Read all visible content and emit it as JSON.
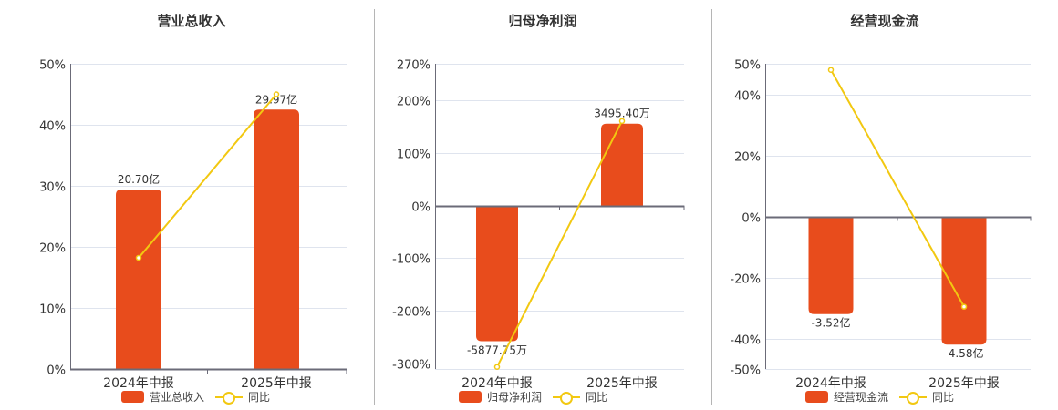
{
  "colors": {
    "bar": "#e84c1c",
    "line": "#f2c811",
    "grid": "#dfe4ee",
    "axis": "#6b6b78",
    "text": "#333333"
  },
  "panels": [
    {
      "title": "营业总收入",
      "bar_legend": "营业总收入",
      "line_legend": "同比"
    },
    {
      "title": "归母净利润",
      "bar_legend": "归母净利润",
      "line_legend": "同比"
    },
    {
      "title": "经营现金流",
      "bar_legend": "经营现金流",
      "line_legend": "同比"
    }
  ],
  "chart_data": [
    {
      "type": "bar",
      "title": "营业总收入",
      "categories": [
        "2024年中报",
        "2025年中报"
      ],
      "series": [
        {
          "name": "营业总收入",
          "type": "bar",
          "values": [
            29.4,
            42.5
          ],
          "labels": [
            "20.70亿",
            "29.97亿"
          ]
        },
        {
          "name": "同比",
          "type": "line",
          "values": [
            18.2,
            45.0
          ]
        }
      ],
      "yticks": [
        "50%",
        "40%",
        "30%",
        "20%",
        "10%",
        "0%"
      ],
      "ylim": [
        0,
        50
      ],
      "grid": true,
      "legend_position": "bottom"
    },
    {
      "type": "bar",
      "title": "归母净利润",
      "categories": [
        "2024年中报",
        "2025年中报"
      ],
      "series": [
        {
          "name": "归母净利润",
          "type": "bar",
          "values": [
            -258,
            156
          ],
          "labels": [
            "-5877.75万",
            "3495.40万"
          ]
        },
        {
          "name": "同比",
          "type": "line",
          "values": [
            -307,
            161
          ]
        }
      ],
      "yticks": [
        "270%",
        "200%",
        "100%",
        "0%",
        "-100%",
        "-200%",
        "-300%"
      ],
      "ylim": [
        -307,
        270
      ],
      "grid": true,
      "legend_position": "bottom"
    },
    {
      "type": "bar",
      "title": "经营现金流",
      "categories": [
        "2024年中报",
        "2025年中报"
      ],
      "series": [
        {
          "name": "经营现金流",
          "type": "bar",
          "values": [
            -32,
            -42
          ],
          "labels": [
            "-3.52亿",
            "-4.58亿"
          ]
        },
        {
          "name": "同比",
          "type": "line",
          "values": [
            48,
            -29.6
          ]
        }
      ],
      "yticks": [
        "50%",
        "40%",
        "20%",
        "0%",
        "-20%",
        "-40%",
        "-50%"
      ],
      "ylim": [
        -50,
        50
      ],
      "grid": true,
      "legend_position": "bottom"
    }
  ]
}
